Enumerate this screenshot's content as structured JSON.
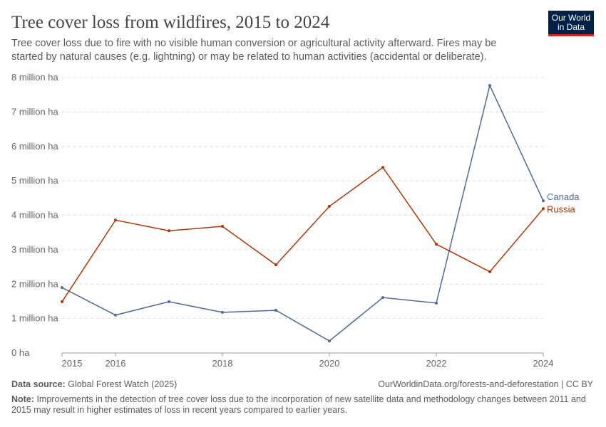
{
  "header": {
    "title": "Tree cover loss from wildfires, 2015 to 2024",
    "subtitle": "Tree cover loss due to fire with no visible human conversion or agricultural activity afterward. Fires may be started by natural causes (e.g. lightning) or may be related to human activities (accidental or deliberate).",
    "logo_line1": "Our World",
    "logo_line2": "in Data"
  },
  "chart_data": {
    "type": "line",
    "x": [
      2015,
      2016,
      2017,
      2018,
      2019,
      2020,
      2021,
      2022,
      2023,
      2024
    ],
    "x_tick_labels": [
      "2015",
      "2016",
      "2018",
      "2020",
      "2022",
      "2024"
    ],
    "y_tick_labels": [
      "0 ha",
      "1 million ha",
      "2 million ha",
      "3 million ha",
      "4 million ha",
      "5 million ha",
      "6 million ha",
      "7 million ha",
      "8 million ha"
    ],
    "ylim": [
      0,
      8
    ],
    "yunit": "million ha",
    "grid": "horizontal dashed",
    "legend": "inline-right",
    "series": [
      {
        "name": "Canada",
        "color": "#4c6a9c",
        "values": [
          1.9,
          1.1,
          1.49,
          1.18,
          1.24,
          0.35,
          1.61,
          1.45,
          7.77,
          4.42
        ]
      },
      {
        "name": "Russia",
        "color": "#b13507",
        "values": [
          1.49,
          3.86,
          3.55,
          3.68,
          2.56,
          4.26,
          5.39,
          3.16,
          2.36,
          4.19
        ]
      }
    ]
  },
  "footer": {
    "source_label": "Data source:",
    "source": "Global Forest Watch (2025)",
    "url": "OurWorldinData.org/forests-and-deforestation | CC BY",
    "note_label": "Note:",
    "note": "Improvements in the detection of tree cover loss due to the incorporation of new satellite data and methodology changes between 2011 and 2015 may result in higher estimates of loss in recent years compared to earlier years."
  }
}
